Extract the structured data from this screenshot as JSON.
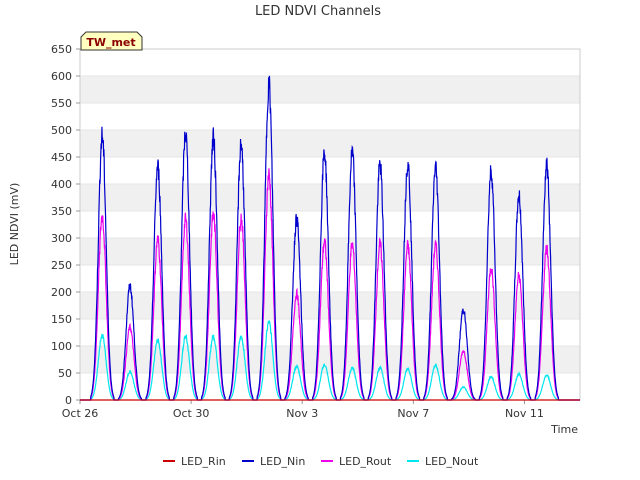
{
  "chart_data": {
    "type": "line",
    "title": "LED NDVI Channels",
    "xlabel": "Time",
    "ylabel": "LED NDVI (mV)",
    "ylim": [
      0,
      650
    ],
    "yticks": [
      0,
      50,
      100,
      150,
      200,
      250,
      300,
      350,
      400,
      450,
      500,
      550,
      600,
      650
    ],
    "xlim": [
      0,
      18
    ],
    "xticks": [
      {
        "x": 0,
        "label": "Oct 26"
      },
      {
        "x": 4,
        "label": "Oct 30"
      },
      {
        "x": 8,
        "label": "Nov 3"
      },
      {
        "x": 12,
        "label": "Nov 7"
      },
      {
        "x": 16,
        "label": "Nov 11"
      }
    ],
    "grid": "horizontal bands",
    "legend": "bottom",
    "station_tag": "TW_met",
    "days": [
      0.8,
      1.8,
      2.8,
      3.8,
      4.8,
      5.8,
      6.8,
      7.8,
      8.8,
      9.8,
      10.8,
      11.8,
      12.8,
      13.8,
      14.8,
      15.8,
      16.8
    ],
    "series": [
      {
        "name": "LED_Rin",
        "color": "#cc0000",
        "peaks": [
          0,
          0,
          0,
          0,
          0,
          0,
          0,
          0,
          0,
          0,
          0,
          0,
          0,
          0,
          0,
          0,
          0
        ]
      },
      {
        "name": "LED_Nin",
        "color": "#0000cc",
        "peaks": [
          510,
          220,
          450,
          515,
          505,
          495,
          610,
          350,
          478,
          478,
          455,
          458,
          450,
          175,
          443,
          395,
          455
        ]
      },
      {
        "name": "LED_Rout",
        "color": "#ee00ee",
        "peaks": [
          355,
          140,
          310,
          348,
          358,
          352,
          435,
          205,
          305,
          300,
          300,
          297,
          298,
          95,
          255,
          240,
          293
        ]
      },
      {
        "name": "LED_Nout",
        "color": "#00e5ee",
        "peaks": [
          125,
          55,
          115,
          122,
          123,
          122,
          150,
          65,
          68,
          62,
          62,
          60,
          68,
          25,
          45,
          50,
          48
        ]
      }
    ]
  }
}
